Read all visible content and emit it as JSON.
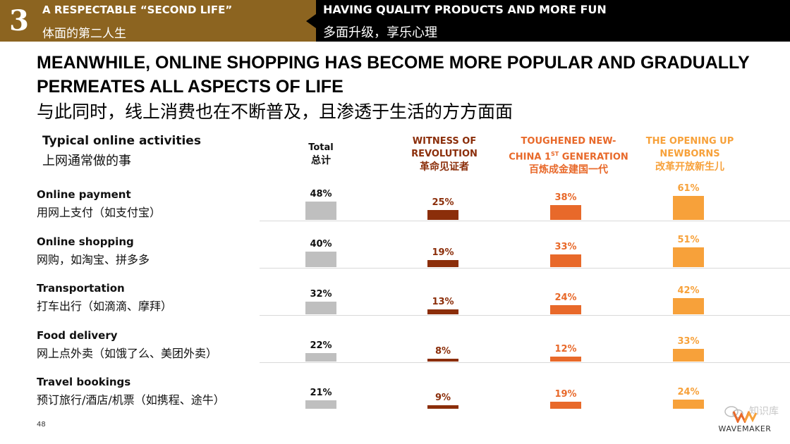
{
  "header": {
    "number": "3",
    "left_en": "A RESPECTABLE “SECOND LIFE”",
    "left_cn": "体面的第二人生",
    "right_en": "HAVING QUALITY PRODUCTS AND MORE FUN",
    "right_cn": "多面升级，享乐心理",
    "left_color": "#8c6420"
  },
  "title_en": "MEANWHILE, ONLINE SHOPPING HAS BECOME MORE POPULAR AND GRADUALLY PERMEATES ALL ASPECTS OF LIFE",
  "title_cn": "与此同时，线上消费也在不断普及，且渗透于生活的方方面面",
  "activities_header": {
    "en": "Typical online activities",
    "cn": "上网通常做的事"
  },
  "page_number": "48",
  "logo_text": "WAVEMAKER",
  "watermark_text": "知识库",
  "chart_data": {
    "type": "bar",
    "categories": [
      {
        "en": "Online payment",
        "cn": "用网上支付（如支付宝）"
      },
      {
        "en": "Online shopping",
        "cn": "网购，如淘宝、拼多多"
      },
      {
        "en": "Transportation",
        "cn": "打车出行（如滴滴、摩拜）"
      },
      {
        "en": "Food delivery",
        "cn": "网上点外卖（如饿了么、美团外卖）"
      },
      {
        "en": "Travel bookings",
        "cn": "预订旅行/酒店/机票（如携程、途牛）"
      }
    ],
    "series": [
      {
        "name_l1": "Total",
        "name_l2": "",
        "name_cn": "总计",
        "color": "#bfbfbf",
        "label_color": "#111111",
        "values": [
          48,
          40,
          32,
          22,
          21
        ]
      },
      {
        "name_l1": "WITNESS OF",
        "name_l2": "REVOLUTION",
        "name_cn": "革命见证者",
        "color": "#8b2e0a",
        "label_color": "#8b2e0a",
        "values": [
          25,
          19,
          13,
          8,
          9
        ]
      },
      {
        "name_l1": "TOUGHENED NEW-",
        "name_l2": "CHINA 1ST GENERATION",
        "name_cn": "百炼成金建国一代",
        "color": "#e8692a",
        "label_color": "#e8692a",
        "values": [
          38,
          33,
          24,
          12,
          19
        ]
      },
      {
        "name_l1": "THE OPENING UP",
        "name_l2": "NEWBORNS",
        "name_cn": "改革开放新生儿",
        "color": "#f7a13a",
        "label_color": "#f7a13a",
        "values": [
          61,
          51,
          42,
          33,
          24
        ]
      }
    ],
    "value_suffix": "%",
    "ylim": [
      0,
      100
    ]
  }
}
